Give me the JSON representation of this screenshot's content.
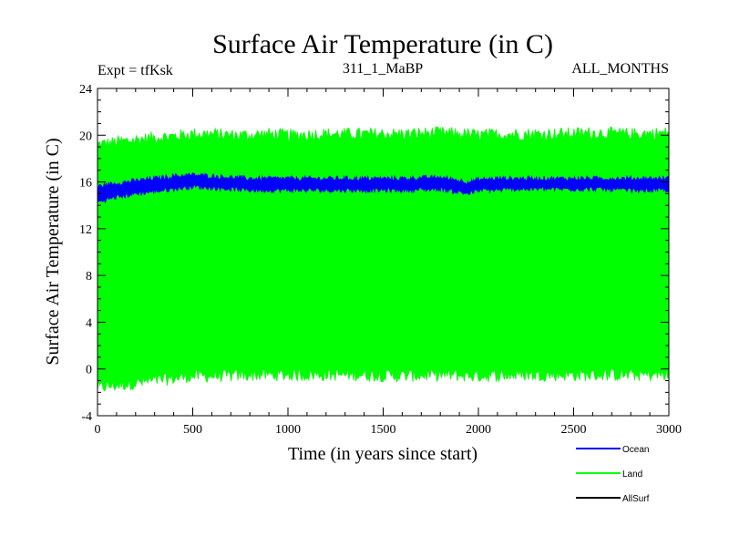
{
  "chart_data": {
    "type": "area",
    "title": "Surface Air Temperature (in C)",
    "subtitle_left": "Expt = tfKsk",
    "subtitle_center": "311_1_MaBP",
    "subtitle_right": "ALL_MONTHS",
    "xlabel": "Time (in years since start)",
    "ylabel": "Surface Air Temperature (in C)",
    "xlim": [
      0,
      3000
    ],
    "ylim": [
      -4,
      24
    ],
    "xticks": [
      0,
      500,
      1000,
      1500,
      2000,
      2500,
      3000
    ],
    "yticks": [
      -4,
      0,
      4,
      8,
      12,
      16,
      20,
      24
    ],
    "series": [
      {
        "name": "Land",
        "color": "#00ff00",
        "x": [
          0,
          100,
          200,
          300,
          400,
          500,
          600,
          700,
          800,
          900,
          1000,
          1200,
          1400,
          1600,
          1800,
          2000,
          2200,
          2400,
          2600,
          2800,
          3000
        ],
        "upper": [
          19.2,
          19.4,
          19.6,
          19.8,
          19.9,
          20.1,
          20.1,
          20.0,
          20.0,
          20.1,
          20.0,
          20.1,
          20.1,
          20.1,
          20.2,
          20.0,
          20.1,
          20.1,
          20.2,
          20.1,
          20.2
        ],
        "lower": [
          -1.6,
          -1.4,
          -1.2,
          -1.0,
          -0.8,
          -0.6,
          -0.6,
          -0.6,
          -0.5,
          -0.5,
          -0.5,
          -0.5,
          -0.5,
          -0.6,
          -0.5,
          -0.6,
          -0.5,
          -0.5,
          -0.5,
          -0.5,
          -0.5
        ]
      },
      {
        "name": "Ocean",
        "color": "#0000ff",
        "x": [
          0,
          100,
          200,
          300,
          400,
          500,
          600,
          700,
          800,
          900,
          1000,
          1200,
          1400,
          1600,
          1800,
          1950,
          2000,
          2100,
          2200,
          2400,
          2600,
          2800,
          3000
        ],
        "upper": [
          15.6,
          15.9,
          16.1,
          16.3,
          16.5,
          16.6,
          16.5,
          16.4,
          16.3,
          16.3,
          16.3,
          16.3,
          16.3,
          16.3,
          16.4,
          16.0,
          16.2,
          16.3,
          16.3,
          16.3,
          16.3,
          16.3,
          16.3
        ],
        "lower": [
          14.3,
          14.7,
          15.0,
          15.2,
          15.4,
          15.6,
          15.5,
          15.4,
          15.3,
          15.3,
          15.3,
          15.3,
          15.3,
          15.3,
          15.4,
          15.0,
          15.3,
          15.3,
          15.4,
          15.4,
          15.4,
          15.3,
          15.3
        ]
      },
      {
        "name": "AllSurf",
        "color": "#000000",
        "x": [],
        "upper": [],
        "lower": []
      }
    ],
    "legend_position": "bottom-right"
  }
}
